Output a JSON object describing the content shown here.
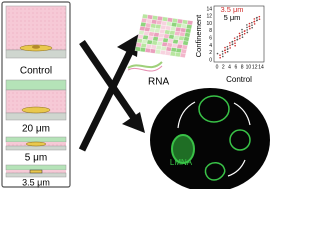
{
  "left_panel": {
    "conditions": [
      "Control",
      "20 μm",
      "5 μm",
      "3.5 μm"
    ]
  },
  "rna": {
    "label": "RNA"
  },
  "scatter": {
    "legend": [
      "3.5 μm",
      "5 μm"
    ],
    "y_label": "Confinement",
    "x_label": "Control",
    "yticks": [
      "14",
      "12",
      "10",
      "8",
      "6",
      "4",
      "2",
      "0"
    ],
    "xticks": [
      "0",
      "2",
      "4",
      "6",
      "8",
      "10",
      "12",
      "14"
    ]
  },
  "imaging": {
    "label": "LMNA"
  }
}
